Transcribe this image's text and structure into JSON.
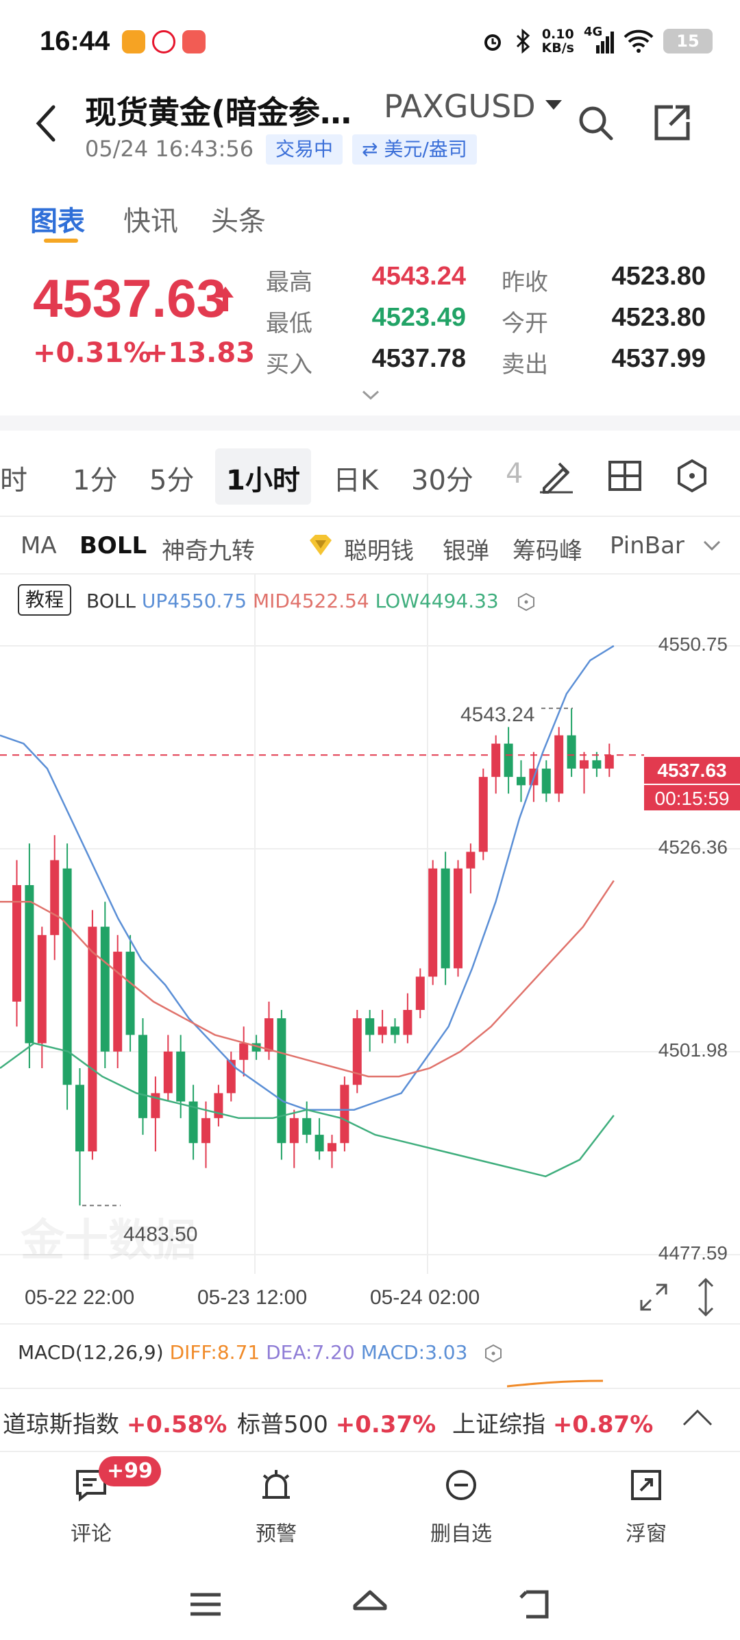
{
  "status_bar": {
    "time": "16:44",
    "net_speed_value": "0.10",
    "net_speed_unit": "KB/s",
    "signal_label": "4G",
    "battery": "15"
  },
  "header": {
    "title": "现货黄金(暗金参…",
    "symbol": "PAXGUSD",
    "datetime": "05/24 16:43:56",
    "status_badge": "交易中",
    "unit_badge": "⇄ 美元/盎司"
  },
  "tabs": [
    "图表",
    "快讯",
    "头条"
  ],
  "quote": {
    "price": "4537.63",
    "change_pct": "+0.31%",
    "change_abs": "+13.83",
    "high_label": "最高",
    "high": "4543.24",
    "low_label": "最低",
    "low": "4523.49",
    "bid_label": "买入",
    "bid": "4537.78",
    "prev_close_label": "昨收",
    "prev_close": "4523.80",
    "open_label": "今开",
    "open": "4523.80",
    "ask_label": "卖出",
    "ask": "4537.99"
  },
  "periods": [
    "分时",
    "1分",
    "5分",
    "1小时",
    "日K",
    "30分",
    "4"
  ],
  "indicators": [
    "MA",
    "BOLL",
    "神奇九转",
    "聪明钱",
    "银弹",
    "筹码峰",
    "PinBar"
  ],
  "chart": {
    "tutorial": "教程",
    "boll_label": "BOLL",
    "boll_up": "UP4550.75",
    "boll_mid": "MID4522.54",
    "boll_low": "LOW4494.33",
    "y_ticks": [
      "4550.75",
      "4526.36",
      "4501.98",
      "4477.59"
    ],
    "current_price": "4537.63",
    "countdown": "00:15:59",
    "high_marker": "4543.24",
    "low_marker": "4483.50",
    "x_ticks": [
      "05-22 22:00",
      "05-23 12:00",
      "05-24 02:00"
    ],
    "watermark": "金十数据",
    "colors": {
      "up": "#e23a4f",
      "down": "#21a366",
      "boll_up": "#5b8fd6",
      "boll_mid": "#e0726b",
      "boll_low": "#3fae7d"
    }
  },
  "chart_data": {
    "type": "candlestick",
    "interval": "1小时",
    "ylim": [
      4477.59,
      4550.75
    ],
    "candles": [
      {
        "o": 4508,
        "h": 4525,
        "l": 4505,
        "c": 4522
      },
      {
        "o": 4522,
        "h": 4527,
        "l": 4500,
        "c": 4503
      },
      {
        "o": 4503,
        "h": 4517,
        "l": 4500,
        "c": 4516
      },
      {
        "o": 4516,
        "h": 4528,
        "l": 4513,
        "c": 4525
      },
      {
        "o": 4524,
        "h": 4527,
        "l": 4495,
        "c": 4498
      },
      {
        "o": 4498,
        "h": 4500,
        "l": 4483.5,
        "c": 4490
      },
      {
        "o": 4490,
        "h": 4519,
        "l": 4489,
        "c": 4517
      },
      {
        "o": 4517,
        "h": 4520,
        "l": 4500,
        "c": 4502
      },
      {
        "o": 4502,
        "h": 4516,
        "l": 4500,
        "c": 4514
      },
      {
        "o": 4514,
        "h": 4516,
        "l": 4502,
        "c": 4504
      },
      {
        "o": 4504,
        "h": 4506,
        "l": 4492,
        "c": 4494
      },
      {
        "o": 4494,
        "h": 4499,
        "l": 4490,
        "c": 4497
      },
      {
        "o": 4497,
        "h": 4504,
        "l": 4496,
        "c": 4502
      },
      {
        "o": 4502,
        "h": 4504,
        "l": 4494,
        "c": 4496
      },
      {
        "o": 4496,
        "h": 4498,
        "l": 4489,
        "c": 4491
      },
      {
        "o": 4491,
        "h": 4496,
        "l": 4488,
        "c": 4494
      },
      {
        "o": 4494,
        "h": 4498,
        "l": 4493,
        "c": 4497
      },
      {
        "o": 4497,
        "h": 4502,
        "l": 4496,
        "c": 4501
      },
      {
        "o": 4501,
        "h": 4505,
        "l": 4499,
        "c": 4503
      },
      {
        "o": 4503,
        "h": 4504,
        "l": 4501,
        "c": 4502
      },
      {
        "o": 4502,
        "h": 4508,
        "l": 4501,
        "c": 4506
      },
      {
        "o": 4506,
        "h": 4507,
        "l": 4489,
        "c": 4491
      },
      {
        "o": 4491,
        "h": 4495,
        "l": 4488,
        "c": 4494
      },
      {
        "o": 4494,
        "h": 4496,
        "l": 4491,
        "c": 4492
      },
      {
        "o": 4492,
        "h": 4494,
        "l": 4489,
        "c": 4490
      },
      {
        "o": 4490,
        "h": 4492,
        "l": 4488,
        "c": 4491
      },
      {
        "o": 4491,
        "h": 4499,
        "l": 4490,
        "c": 4498
      },
      {
        "o": 4498,
        "h": 4507,
        "l": 4497,
        "c": 4506
      },
      {
        "o": 4506,
        "h": 4507,
        "l": 4502,
        "c": 4504
      },
      {
        "o": 4504,
        "h": 4507,
        "l": 4503,
        "c": 4505
      },
      {
        "o": 4505,
        "h": 4506,
        "l": 4503,
        "c": 4504
      },
      {
        "o": 4504,
        "h": 4509,
        "l": 4503,
        "c": 4507
      },
      {
        "o": 4507,
        "h": 4512,
        "l": 4506,
        "c": 4511
      },
      {
        "o": 4511,
        "h": 4525,
        "l": 4510,
        "c": 4524
      },
      {
        "o": 4524,
        "h": 4526,
        "l": 4510,
        "c": 4512
      },
      {
        "o": 4512,
        "h": 4525,
        "l": 4511,
        "c": 4524
      },
      {
        "o": 4524,
        "h": 4527,
        "l": 4521,
        "c": 4526
      },
      {
        "o": 4526,
        "h": 4536,
        "l": 4525,
        "c": 4535
      },
      {
        "o": 4535,
        "h": 4540,
        "l": 4533,
        "c": 4539
      },
      {
        "o": 4539,
        "h": 4541,
        "l": 4533,
        "c": 4535
      },
      {
        "o": 4535,
        "h": 4537,
        "l": 4532,
        "c": 4534
      },
      {
        "o": 4534,
        "h": 4538,
        "l": 4532,
        "c": 4536
      },
      {
        "o": 4536,
        "h": 4537,
        "l": 4532,
        "c": 4533
      },
      {
        "o": 4533,
        "h": 4541,
        "l": 4532,
        "c": 4540
      },
      {
        "o": 4540,
        "h": 4543.24,
        "l": 4535,
        "c": 4536
      },
      {
        "o": 4536,
        "h": 4538,
        "l": 4533,
        "c": 4537
      },
      {
        "o": 4537,
        "h": 4538,
        "l": 4535,
        "c": 4536
      },
      {
        "o": 4536,
        "h": 4539,
        "l": 4535,
        "c": 4537.63
      }
    ],
    "boll_upper": [
      4540,
      4539,
      4536,
      4530,
      4524,
      4518,
      4513,
      4510,
      4506,
      4503,
      4500,
      4498,
      4496,
      4495,
      4495,
      4495,
      4496,
      4497,
      4501,
      4505,
      4512,
      4520,
      4530,
      4538,
      4545,
      4549,
      4550.75
    ],
    "boll_mid": [
      4520,
      4520,
      4518,
      4514,
      4511,
      4508,
      4506,
      4504,
      4503,
      4502,
      4501,
      4500,
      4499,
      4499,
      4500,
      4502,
      4505,
      4509,
      4513,
      4517,
      4522.54
    ],
    "boll_lower": [
      4500,
      4503,
      4502,
      4499,
      4497,
      4496,
      4495,
      4494,
      4494,
      4495,
      4494,
      4492,
      4491,
      4490,
      4489,
      4488,
      4487,
      4489,
      4494.33
    ]
  },
  "macd": {
    "label": "MACD(12,26,9)",
    "diff": "DIFF:8.71",
    "dea": "DEA:7.20",
    "macd": "MACD:3.03"
  },
  "ticker": [
    {
      "name": "道琼斯指数",
      "value": "+0.58%"
    },
    {
      "name": "标普500",
      "value": "+0.37%"
    },
    {
      "name": "上证综指",
      "value": "+0.87%"
    }
  ],
  "actions": {
    "comment": "评论",
    "comment_badge": "+99",
    "alert": "预警",
    "remove_watch": "删自选",
    "float_window": "浮窗"
  }
}
